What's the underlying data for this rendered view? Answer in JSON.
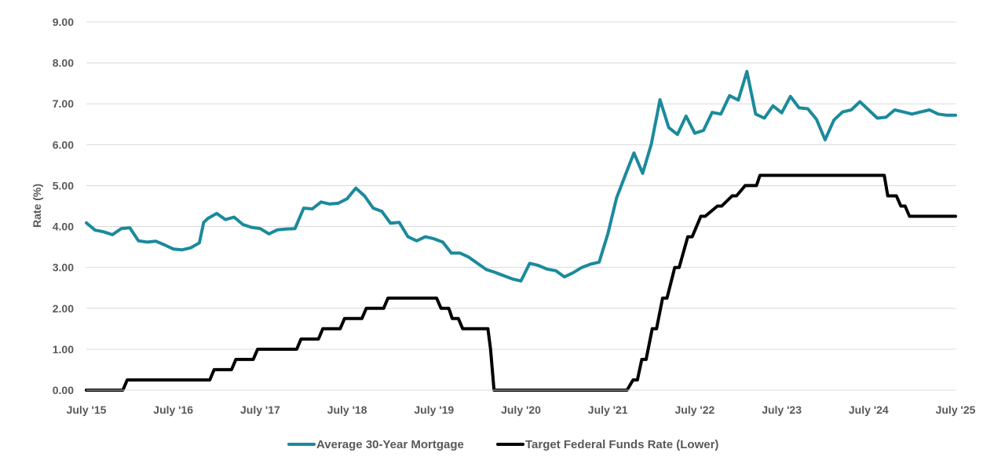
{
  "chart_data": {
    "type": "line",
    "title": "",
    "xlabel": "",
    "ylabel": "Rate (%)",
    "ylim": [
      0,
      9
    ],
    "yticks": [
      "0.00",
      "1.00",
      "2.00",
      "3.00",
      "4.00",
      "5.00",
      "6.00",
      "7.00",
      "8.00",
      "9.00"
    ],
    "xticks": [
      "July '15",
      "July '16",
      "July '17",
      "July '18",
      "July '19",
      "July '20",
      "July '21",
      "July '22",
      "July '23",
      "July '24",
      "July '25"
    ],
    "xlim": [
      2015.5,
      2025.5
    ],
    "grid": "horizontal",
    "legend_position": "bottom",
    "series": [
      {
        "name": "Average 30-Year Mortgage",
        "color": "#1B8A9C",
        "x": [
          2015.5,
          2015.6,
          2015.7,
          2015.8,
          2015.9,
          2016.0,
          2016.1,
          2016.2,
          2016.3,
          2016.4,
          2016.5,
          2016.6,
          2016.7,
          2016.8,
          2016.85,
          2016.9,
          2017.0,
          2017.1,
          2017.2,
          2017.3,
          2017.4,
          2017.5,
          2017.6,
          2017.7,
          2017.8,
          2017.9,
          2018.0,
          2018.1,
          2018.2,
          2018.3,
          2018.4,
          2018.5,
          2018.6,
          2018.7,
          2018.8,
          2018.9,
          2019.0,
          2019.1,
          2019.2,
          2019.3,
          2019.4,
          2019.5,
          2019.6,
          2019.7,
          2019.8,
          2019.9,
          2020.0,
          2020.1,
          2020.2,
          2020.3,
          2020.4,
          2020.5,
          2020.6,
          2020.7,
          2020.8,
          2020.9,
          2021.0,
          2021.1,
          2021.2,
          2021.3,
          2021.4,
          2021.5,
          2021.6,
          2021.7,
          2021.8,
          2021.9,
          2022.0,
          2022.1,
          2022.2,
          2022.3,
          2022.4,
          2022.5,
          2022.6,
          2022.7,
          2022.8,
          2022.9,
          2023.0,
          2023.1,
          2023.2,
          2023.3,
          2023.4,
          2023.5,
          2023.6,
          2023.7,
          2023.8,
          2023.9,
          2024.0,
          2024.1,
          2024.2,
          2024.3,
          2024.4,
          2024.5,
          2024.6,
          2024.7,
          2024.8,
          2024.9,
          2025.0,
          2025.1,
          2025.2,
          2025.3,
          2025.4,
          2025.5
        ],
        "values": [
          4.09,
          3.91,
          3.87,
          3.8,
          3.95,
          3.97,
          3.65,
          3.62,
          3.64,
          3.55,
          3.45,
          3.43,
          3.48,
          3.6,
          4.1,
          4.2,
          4.32,
          4.17,
          4.23,
          4.05,
          3.98,
          3.95,
          3.82,
          3.92,
          3.94,
          3.95,
          4.45,
          4.43,
          4.6,
          4.55,
          4.57,
          4.68,
          4.94,
          4.75,
          4.45,
          4.37,
          4.08,
          4.1,
          3.75,
          3.65,
          3.75,
          3.7,
          3.62,
          3.35,
          3.35,
          3.25,
          3.1,
          2.95,
          2.88,
          2.8,
          2.72,
          2.67,
          3.1,
          3.05,
          2.96,
          2.92,
          2.77,
          2.87,
          3.0,
          3.08,
          3.13,
          3.82,
          4.7,
          5.25,
          5.8,
          5.3,
          6.02,
          7.1,
          6.42,
          6.25,
          6.7,
          6.28,
          6.35,
          6.79,
          6.75,
          7.2,
          7.09,
          7.79,
          6.75,
          6.65,
          6.95,
          6.78,
          7.18,
          6.9,
          6.88,
          6.62,
          6.12,
          6.6,
          6.8,
          6.85,
          7.05,
          6.85,
          6.65,
          6.67,
          6.85,
          6.8,
          6.75,
          6.8,
          6.85,
          6.75,
          6.72,
          6.72
        ]
      },
      {
        "name": "Target Federal Funds Rate (Lower)",
        "color": "#000000",
        "x": [
          2015.5,
          2015.92,
          2015.97,
          2016.92,
          2016.97,
          2017.17,
          2017.22,
          2017.42,
          2017.47,
          2017.92,
          2017.97,
          2018.17,
          2018.22,
          2018.42,
          2018.47,
          2018.67,
          2018.72,
          2018.92,
          2018.97,
          2019.53,
          2019.58,
          2019.67,
          2019.71,
          2019.78,
          2019.83,
          2020.12,
          2020.15,
          2020.19,
          2021.72,
          2021.79,
          2021.84,
          2021.89,
          2021.94,
          2022.01,
          2022.06,
          2022.13,
          2022.18,
          2022.27,
          2022.32,
          2022.42,
          2022.47,
          2022.57,
          2022.62,
          2022.76,
          2022.81,
          2022.93,
          2022.98,
          2023.08,
          2023.12,
          2023.21,
          2023.25,
          2023.53,
          2023.58,
          2024.68,
          2024.72,
          2024.82,
          2024.87,
          2024.92,
          2024.97,
          2025.5
        ],
        "values": [
          0,
          0,
          0.25,
          0.25,
          0.5,
          0.5,
          0.75,
          0.75,
          1.0,
          1.0,
          1.25,
          1.25,
          1.5,
          1.5,
          1.75,
          1.75,
          2.0,
          2.0,
          2.25,
          2.25,
          2.0,
          2.0,
          1.75,
          1.75,
          1.5,
          1.5,
          1.0,
          0,
          0,
          0.25,
          0.25,
          0.75,
          0.75,
          1.5,
          1.5,
          2.25,
          2.25,
          3.0,
          3.0,
          3.75,
          3.75,
          4.25,
          4.25,
          4.5,
          4.5,
          4.75,
          4.75,
          5.0,
          5.0,
          5.0,
          5.25,
          5.25,
          5.25,
          5.25,
          4.75,
          4.75,
          4.5,
          4.5,
          4.25,
          4.25
        ]
      }
    ]
  }
}
